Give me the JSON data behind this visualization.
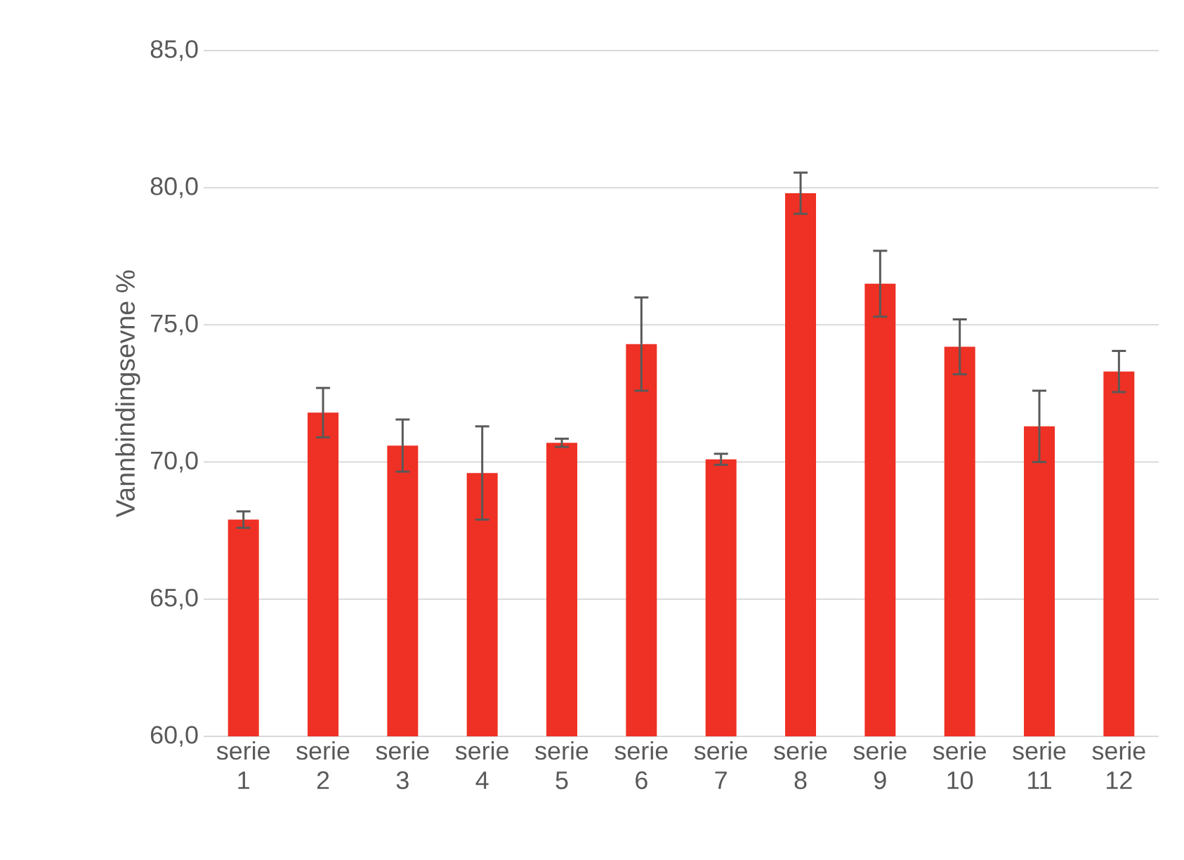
{
  "chart_data": {
    "type": "bar",
    "ylabel": "Vannbindingsevne %",
    "categories": [
      "serie 1",
      "serie 2",
      "serie 3",
      "serie 4",
      "serie 5",
      "serie 6",
      "serie 7",
      "serie 8",
      "serie 9",
      "serie 10",
      "serie 11",
      "serie 12"
    ],
    "values": [
      67.9,
      71.8,
      70.6,
      69.6,
      70.7,
      74.3,
      70.1,
      79.8,
      76.5,
      74.2,
      71.3,
      73.3
    ],
    "errors": [
      0.3,
      0.9,
      0.95,
      1.7,
      0.15,
      1.7,
      0.2,
      0.75,
      1.2,
      1.0,
      1.3,
      0.75
    ],
    "color": "#ee3124",
    "ylim": [
      60,
      85
    ],
    "yticks": [
      {
        "value": 60,
        "label": "60,0"
      },
      {
        "value": 65,
        "label": "65,0"
      },
      {
        "value": 70,
        "label": "70,0"
      },
      {
        "value": 75,
        "label": "75,0"
      },
      {
        "value": 80,
        "label": "80,0"
      },
      {
        "value": 85,
        "label": "85,0"
      }
    ],
    "grid": "y"
  }
}
